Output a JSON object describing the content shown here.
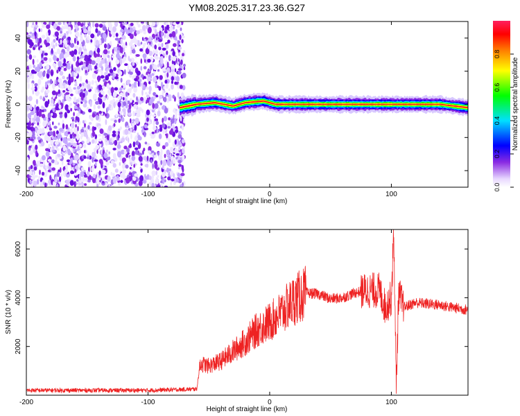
{
  "title": "YM08.2025.317.23.36.G27",
  "chart_data": [
    {
      "type": "heatmap",
      "name": "spectrogram",
      "xlabel": "Height of straight line (km)",
      "ylabel": "Frequency (Hz)",
      "xlim": [
        -200,
        163
      ],
      "ylim": [
        -50,
        50
      ],
      "xticks": [
        -200,
        -100,
        0,
        100
      ],
      "yticks": [
        -40,
        -20,
        0,
        20,
        40
      ],
      "noise_region_x": [
        -200,
        -70
      ],
      "signal_band_x": [
        -74,
        163
      ],
      "signal_center_hz": [
        {
          "x": -74,
          "f": -2
        },
        {
          "x": -60,
          "f": 0
        },
        {
          "x": -45,
          "f": 1
        },
        {
          "x": -30,
          "f": -1
        },
        {
          "x": -20,
          "f": 1
        },
        {
          "x": -5,
          "f": 2
        },
        {
          "x": 5,
          "f": 0
        },
        {
          "x": 50,
          "f": 0
        },
        {
          "x": 100,
          "f": 0
        },
        {
          "x": 140,
          "f": 0
        },
        {
          "x": 163,
          "f": -2
        }
      ],
      "colorbar": {
        "label": "Normalized spectral amplitude",
        "range": [
          0,
          1
        ],
        "ticks": [
          "0.0",
          "0.2",
          "0.4",
          "0.6",
          "0.8"
        ],
        "colors": [
          "#ffffff",
          "#d8c8ff",
          "#8a2be2",
          "#0000ff",
          "#00e0ff",
          "#00ff00",
          "#ffff00",
          "#ff8000",
          "#ff0000",
          "#ff2060"
        ]
      }
    },
    {
      "type": "line",
      "name": "snr",
      "xlabel": "Height of straight line (km)",
      "ylabel": "SNR (10 * v/v)",
      "xlim": [
        -200,
        163
      ],
      "ylim": [
        0,
        6800
      ],
      "xticks": [
        -200,
        -100,
        0,
        100
      ],
      "yticks": [
        2000,
        4000,
        6000
      ],
      "color": "#ee2222",
      "series": [
        {
          "name": "SNR",
          "x": [
            -200,
            -150,
            -100,
            -60,
            -57,
            -50,
            -40,
            -30,
            -20,
            -10,
            0,
            10,
            20,
            30,
            40,
            50,
            60,
            70,
            80,
            90,
            95,
            100,
            102,
            104,
            106,
            110,
            120,
            130,
            140,
            150,
            163
          ],
          "y": [
            200,
            200,
            200,
            250,
            1300,
            1200,
            1400,
            1800,
            2200,
            2700,
            3000,
            3400,
            3900,
            4200,
            4150,
            3950,
            4000,
            4200,
            4300,
            4300,
            3600,
            4000,
            6700,
            300,
            4200,
            3600,
            3800,
            3750,
            3700,
            3600,
            3500
          ]
        }
      ]
    }
  ]
}
